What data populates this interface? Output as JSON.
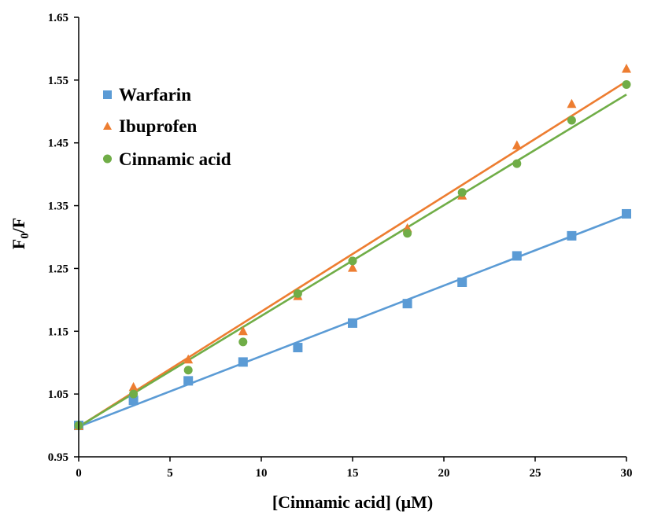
{
  "chart_data": {
    "type": "scatter",
    "xlabel": "[Cinnamic acid] (μM)",
    "ylabel_main": "F",
    "ylabel_sub": "0",
    "ylabel_tail": "/F",
    "xlim": [
      0,
      30
    ],
    "ylim": [
      0.95,
      1.65
    ],
    "x_ticks": [
      0,
      5,
      10,
      15,
      20,
      25,
      30
    ],
    "y_ticks": [
      0.95,
      1.05,
      1.15,
      1.25,
      1.35,
      1.45,
      1.55,
      1.65
    ],
    "x_tick_labels": [
      "0",
      "5",
      "10",
      "15",
      "20",
      "25",
      "30"
    ],
    "y_tick_labels": [
      "0.95",
      "1.05",
      "1.15",
      "1.25",
      "1.35",
      "1.45",
      "1.55",
      "1.65"
    ],
    "grid": false,
    "legend_position": "top-left",
    "series": [
      {
        "name": "Warfarin",
        "marker": "square",
        "color": "#5B9BD5",
        "x": [
          0,
          3,
          6,
          9,
          12,
          15,
          18,
          21,
          24,
          27,
          30
        ],
        "y": [
          1.0,
          1.04,
          1.071,
          1.101,
          1.124,
          1.163,
          1.194,
          1.228,
          1.27,
          1.302,
          1.337
        ],
        "fit": {
          "x": [
            0,
            30
          ],
          "y": [
            0.998,
            1.335
          ]
        }
      },
      {
        "name": "Ibuprofen",
        "marker": "triangle",
        "color": "#ED7D31",
        "x": [
          0,
          3,
          6,
          9,
          12,
          15,
          18,
          21,
          24,
          27,
          30
        ],
        "y": [
          0.999,
          1.061,
          1.105,
          1.15,
          1.206,
          1.251,
          1.314,
          1.366,
          1.446,
          1.512,
          1.568
        ],
        "fit": {
          "x": [
            0,
            30
          ],
          "y": [
            0.998,
            1.548
          ]
        }
      },
      {
        "name": "Cinnamic acid",
        "marker": "circle",
        "color": "#70AD47",
        "x": [
          0,
          3,
          6,
          9,
          12,
          15,
          18,
          21,
          24,
          27,
          30
        ],
        "y": [
          1.0,
          1.05,
          1.088,
          1.133,
          1.21,
          1.262,
          1.306,
          1.371,
          1.417,
          1.486,
          1.543
        ],
        "fit": {
          "x": [
            0,
            30
          ],
          "y": [
            0.998,
            1.527
          ]
        }
      }
    ]
  }
}
